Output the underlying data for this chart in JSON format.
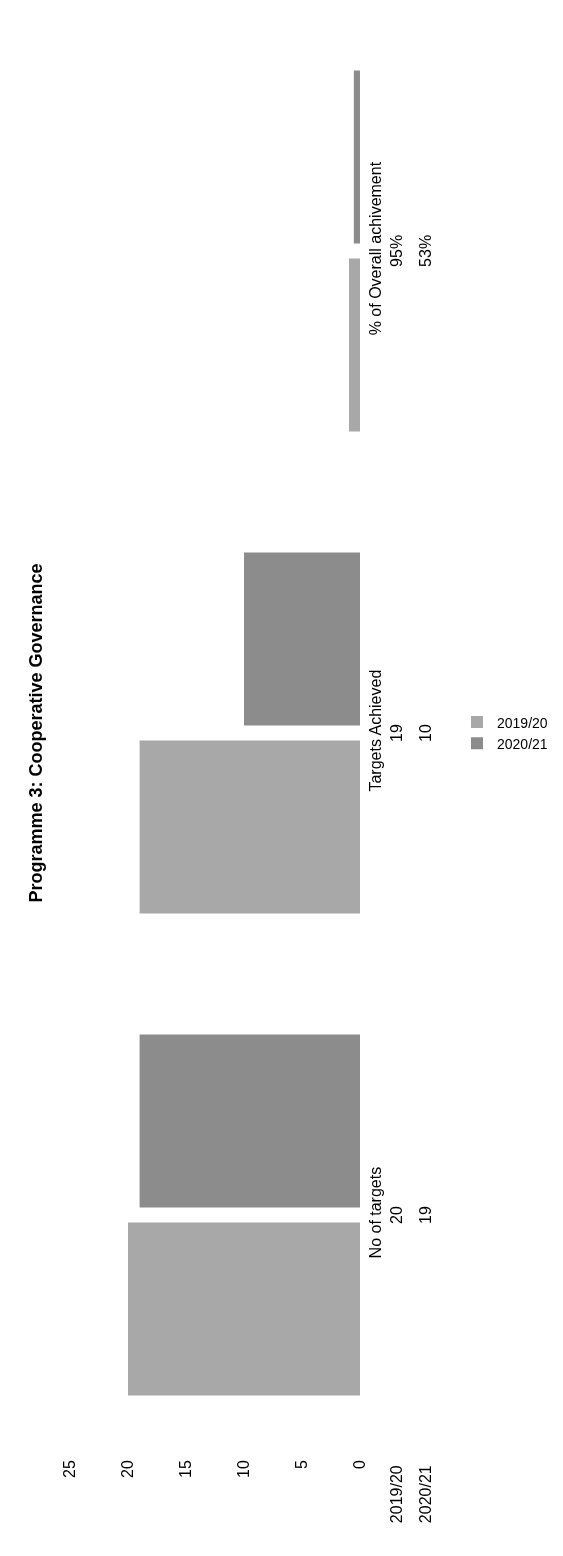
{
  "chart_data": {
    "type": "bar",
    "orientation": "horizontal",
    "title": "Programme 3: Cooperative Governance",
    "categories": [
      "% of Overall achivement",
      "Targets Achieved",
      "No of targets"
    ],
    "series": [
      {
        "name": "2019/20",
        "color": "#a8a8a8",
        "values": [
          0.95,
          19,
          20
        ],
        "value_labels": [
          "95%",
          "19",
          "20"
        ]
      },
      {
        "name": "2020/21",
        "color": "#8c8c8c",
        "values": [
          0.53,
          10,
          19
        ],
        "value_labels": [
          "53%",
          "10",
          "19"
        ]
      }
    ],
    "xlim": [
      25,
      0
    ],
    "xticks": [
      0,
      5,
      10,
      15,
      20,
      25
    ],
    "legend": "right"
  }
}
